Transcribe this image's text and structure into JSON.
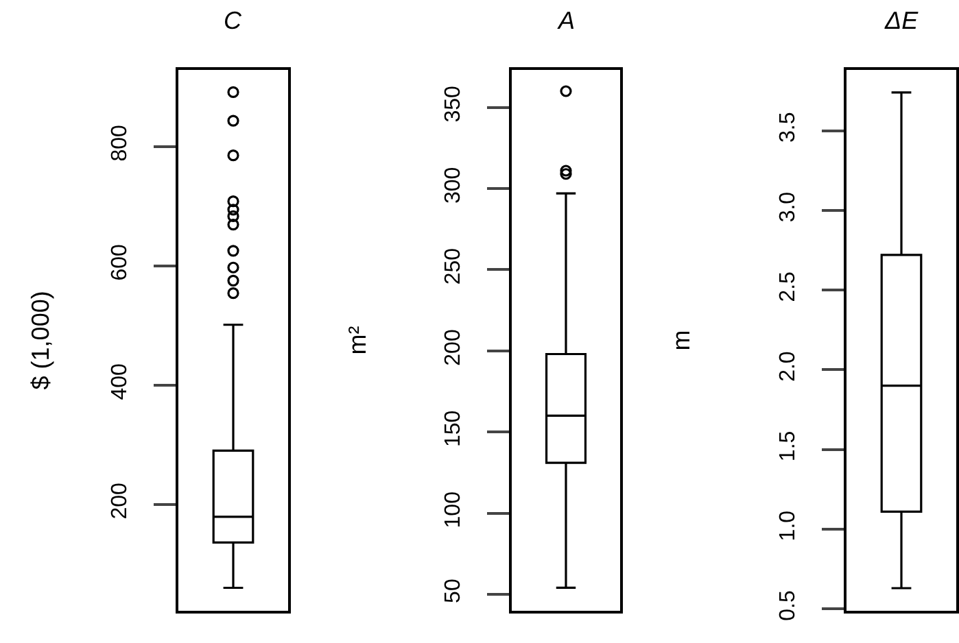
{
  "chart_data": [
    {
      "type": "box",
      "title": "C",
      "ylabel": "$ (1,000)",
      "categories": [
        null
      ],
      "boxes": [
        {
          "low": 60,
          "q1": 136,
          "median": 179,
          "q3": 290,
          "high": 501,
          "outliers": [
            554,
            575,
            597,
            625,
            669,
            683,
            694,
            708,
            785,
            843,
            891
          ]
        }
      ],
      "ylim": [
        22,
        928
      ],
      "yticks": [
        200,
        400,
        600,
        800
      ],
      "tick_labels": "y"
    },
    {
      "type": "box",
      "title": "A",
      "ylabel": "m²",
      "categories": [
        null
      ],
      "boxes": [
        {
          "low": 54,
          "q1": 131,
          "median": 160,
          "q3": 198,
          "high": 297,
          "outliers": [
            309,
            311,
            360
          ]
        }
      ],
      "ylim": [
        40,
        373
      ],
      "yticks": [
        50,
        100,
        150,
        200,
        250,
        300,
        350
      ],
      "tick_labels": "y"
    },
    {
      "type": "box",
      "title": "ΔE",
      "ylabel": "m",
      "categories": [
        null
      ],
      "boxes": [
        {
          "low": 0.63,
          "q1": 1.11,
          "median": 1.9,
          "q3": 2.72,
          "high": 3.74
        }
      ],
      "ylim": [
        0.49,
        3.88
      ],
      "yticks": [
        0.5,
        {
          "value": 1,
          "label": "1.0"
        },
        1.5,
        {
          "value": 2,
          "label": "2.0"
        },
        2.5,
        {
          "value": 3,
          "label": "3.0"
        },
        3.5
      ],
      "tick_labels": "y"
    }
  ]
}
